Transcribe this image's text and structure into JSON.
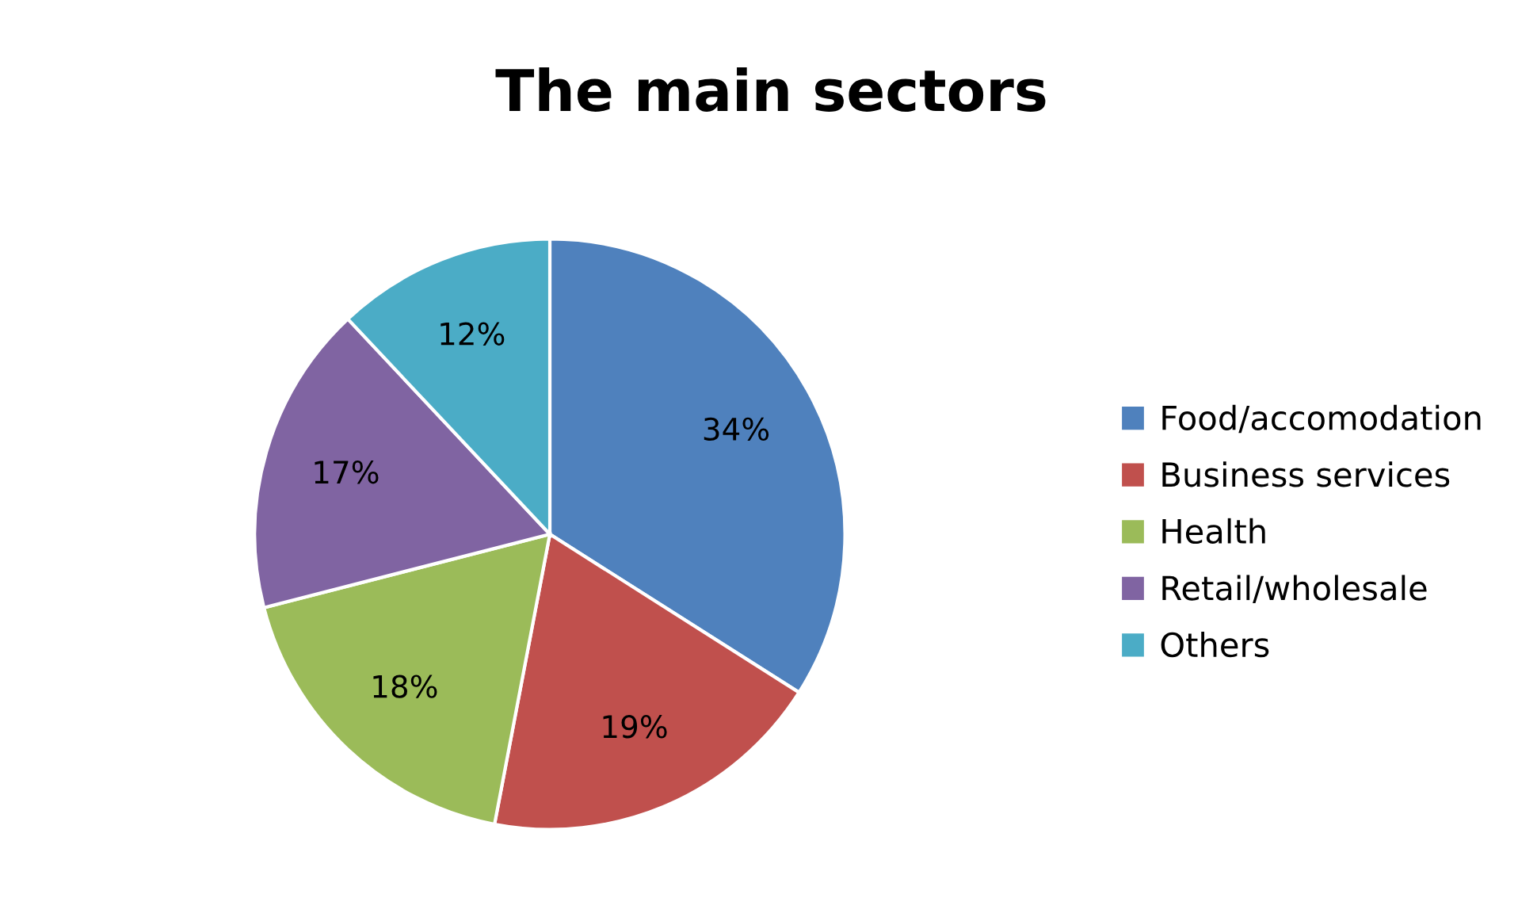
{
  "chart_data": {
    "type": "pie",
    "title": "The main sectors",
    "categories": [
      "Food/accomodation",
      "Business services",
      "Health",
      "Retail/wholesale",
      "Others"
    ],
    "values": [
      34,
      19,
      18,
      17,
      12
    ],
    "colors": [
      "#4f81bd",
      "#c0504d",
      "#9bbb59",
      "#8064a2",
      "#4bacc6"
    ],
    "value_labels": [
      "34%",
      "19%",
      "18%",
      "17%",
      "12%"
    ],
    "legend": "right"
  }
}
